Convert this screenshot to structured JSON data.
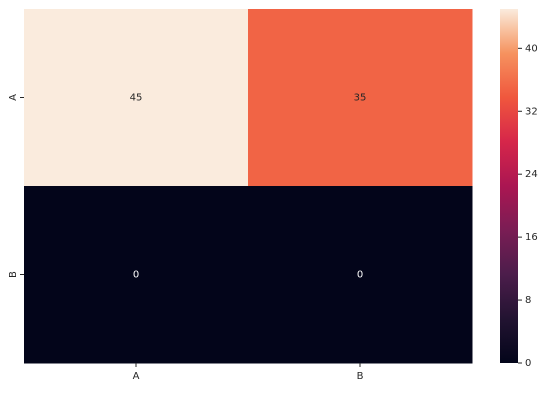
{
  "chart_data": {
    "type": "heatmap",
    "x_categories": [
      "A",
      "B"
    ],
    "y_categories": [
      "A",
      "B"
    ],
    "values": [
      [
        45,
        35
      ],
      [
        0,
        0
      ]
    ],
    "annotations": true,
    "colorbar": {
      "min": 0,
      "max": 45,
      "ticks": [
        0,
        8,
        16,
        24,
        32,
        40
      ],
      "colormap": "rocket"
    },
    "title": "",
    "xlabel": "",
    "ylabel": ""
  }
}
